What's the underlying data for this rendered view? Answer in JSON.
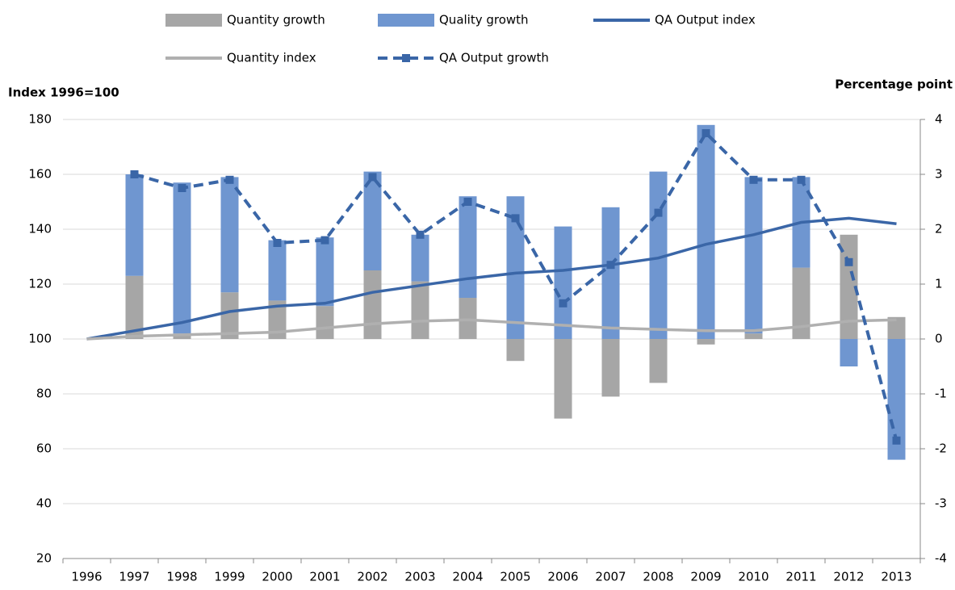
{
  "chart_data": {
    "type": "bar",
    "y_label": "Index 1996=100",
    "y2_label": "Percentage point",
    "categories": [
      "1996",
      "1997",
      "1998",
      "1999",
      "2000",
      "2001",
      "2002",
      "2003",
      "2004",
      "2005",
      "2006",
      "2007",
      "2008",
      "2009",
      "2010",
      "2011",
      "2012",
      "2013"
    ],
    "ylim": [
      20,
      180
    ],
    "yticks": [
      20,
      40,
      60,
      80,
      100,
      120,
      140,
      160,
      180
    ],
    "y2lim": [
      -4,
      4
    ],
    "y2ticks": [
      -4,
      -3,
      -2,
      -1,
      0,
      1,
      2,
      3,
      4
    ],
    "grid": true,
    "series": [
      {
        "name": "Quantity growth",
        "type": "bar",
        "axis": "y2",
        "color": "#a6a6a6",
        "values": [
          null,
          1.15,
          0.1,
          0.85,
          0.7,
          0.6,
          1.25,
          1.05,
          0.75,
          -0.4,
          -1.45,
          -1.05,
          -0.8,
          -0.1,
          0.1,
          1.3,
          1.9,
          0.4
        ]
      },
      {
        "name": "Quality growth",
        "type": "bar",
        "axis": "y2",
        "color": "#6f96d0",
        "values": [
          null,
          1.85,
          2.75,
          2.1,
          1.1,
          1.25,
          1.8,
          0.85,
          1.85,
          2.6,
          2.05,
          2.4,
          3.05,
          3.9,
          2.85,
          1.65,
          -0.5,
          -2.2
        ]
      },
      {
        "name": "QA Output index",
        "type": "line",
        "color": "#3a66a7",
        "values": [
          100,
          103,
          106,
          110,
          112,
          113,
          117,
          119.5,
          122,
          124,
          125,
          127,
          129.5,
          134.5,
          138,
          142.5,
          144,
          142
        ]
      },
      {
        "name": "Quantity index",
        "type": "line",
        "color": "#b0b0b0",
        "values": [
          100,
          101,
          101.5,
          102,
          102.5,
          104,
          105.5,
          106.5,
          107,
          106,
          105,
          104,
          103.5,
          103,
          103,
          104.5,
          106.5,
          107
        ]
      },
      {
        "name": "QA Output growth",
        "type": "line",
        "axis": "y2",
        "color": "#3a66a7",
        "dashed": true,
        "markers": true,
        "values": [
          null,
          3.0,
          2.75,
          2.9,
          1.75,
          1.8,
          2.95,
          1.9,
          2.5,
          2.2,
          0.65,
          1.35,
          2.3,
          3.75,
          2.9,
          2.9,
          1.4,
          -1.85
        ]
      }
    ]
  }
}
